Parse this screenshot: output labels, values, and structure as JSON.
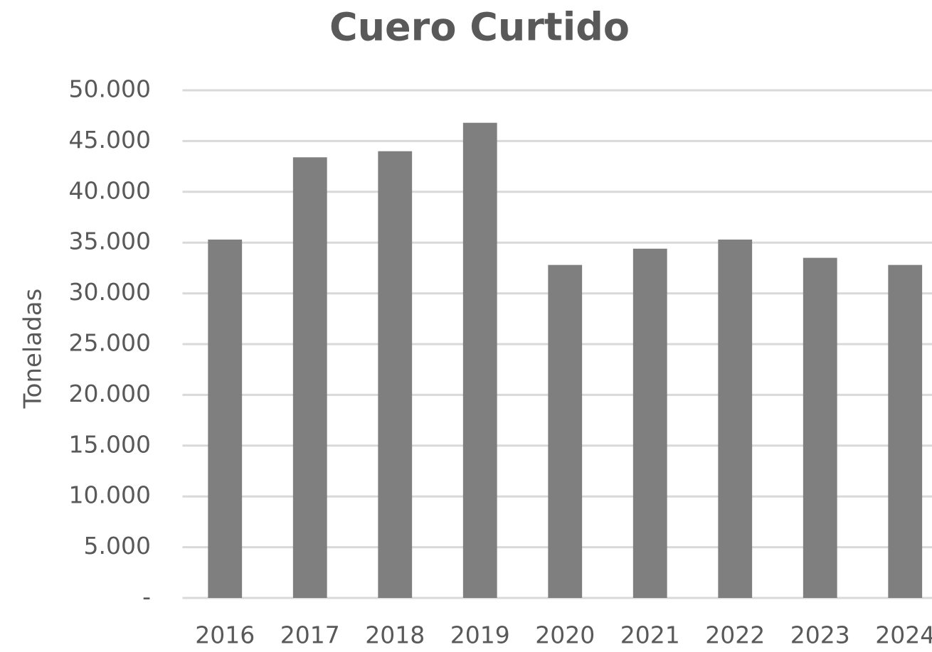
{
  "chart_data": {
    "type": "bar",
    "title": "Cuero Curtido",
    "y_label": "Toneladas",
    "categories": [
      "2016",
      "2017",
      "2018",
      "2019",
      "2020",
      "2021",
      "2022",
      "2023",
      "2024"
    ],
    "values": [
      35300,
      43400,
      44000,
      46800,
      32800,
      34400,
      35300,
      33500,
      32800
    ],
    "color": "#7f7f7f",
    "ylim": [
      0,
      50000
    ],
    "yticks": [
      {
        "value": 0,
        "label": "-"
      },
      {
        "value": 5000,
        "label": "5.000"
      },
      {
        "value": 10000,
        "label": "10.000"
      },
      {
        "value": 15000,
        "label": "15.000"
      },
      {
        "value": 20000,
        "label": "20.000"
      },
      {
        "value": 25000,
        "label": "25.000"
      },
      {
        "value": 30000,
        "label": "30.000"
      },
      {
        "value": 35000,
        "label": "35.000"
      },
      {
        "value": 40000,
        "label": "40.000"
      },
      {
        "value": 45000,
        "label": "45.000"
      },
      {
        "value": 50000,
        "label": "50.000"
      }
    ],
    "grid": true
  }
}
